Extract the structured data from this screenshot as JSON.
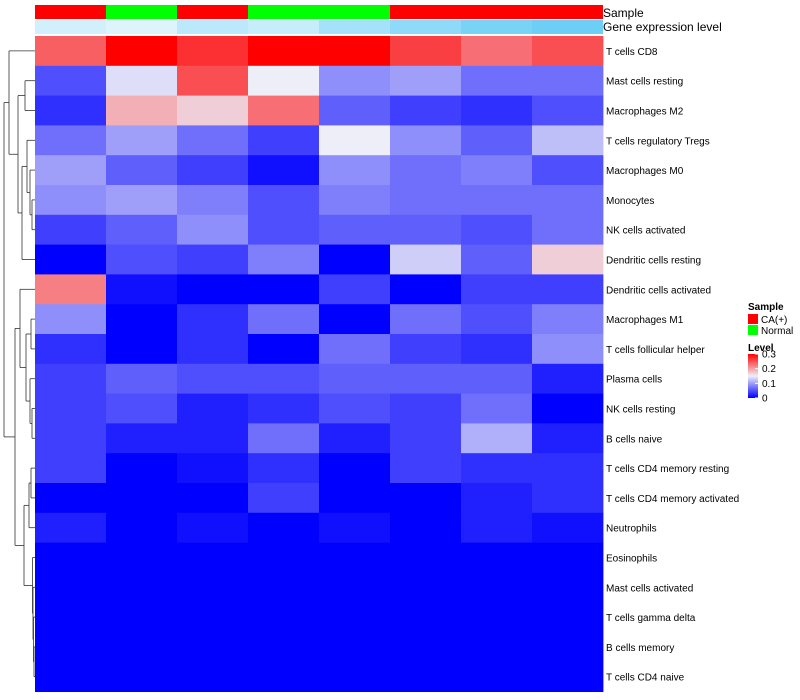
{
  "chart_data": {
    "type": "heatmap",
    "annotation_labels": {
      "sample": "Sample",
      "expression": "Gene expression level"
    },
    "sample_groups": [
      "CA(+)",
      "Normal",
      "CA(+)",
      "Normal",
      "Normal",
      "CA(+)",
      "CA(+)",
      "CA(+)"
    ],
    "expression_levels": [
      0.08,
      0.06,
      0.12,
      0.1,
      0.16,
      0.2,
      0.24,
      0.26
    ],
    "rows": [
      "T cells CD8",
      "Mast cells resting",
      "Macrophages M2",
      "T cells regulatory  Tregs",
      "Macrophages M0",
      "Monocytes",
      "NK cells activated",
      "Dendritic cells resting",
      "Dendritic cells activated",
      "Macrophages M1",
      "T cells follicular helper",
      "Plasma cells",
      "NK cells resting",
      "B cells naive",
      "T cells CD4 memory resting",
      "T cells CD4 memory activated",
      "Neutrophils",
      "Eosinophils",
      "Mast cells activated",
      "T cells gamma delta",
      "B cells memory",
      "T cells CD4 naive"
    ],
    "values": [
      [
        0.24,
        0.3,
        0.27,
        0.3,
        0.3,
        0.26,
        0.23,
        0.25
      ],
      [
        0.05,
        0.14,
        0.25,
        0.15,
        0.09,
        0.1,
        0.07,
        0.07
      ],
      [
        0.03,
        0.19,
        0.17,
        0.23,
        0.06,
        0.04,
        0.03,
        0.05
      ],
      [
        0.07,
        0.1,
        0.07,
        0.04,
        0.15,
        0.09,
        0.06,
        0.12
      ],
      [
        0.1,
        0.06,
        0.04,
        0.01,
        0.09,
        0.07,
        0.08,
        0.05
      ],
      [
        0.09,
        0.1,
        0.08,
        0.05,
        0.08,
        0.07,
        0.07,
        0.07
      ],
      [
        0.04,
        0.06,
        0.09,
        0.05,
        0.06,
        0.06,
        0.05,
        0.07
      ],
      [
        0.0,
        0.05,
        0.04,
        0.08,
        0.0,
        0.13,
        0.06,
        0.17
      ],
      [
        0.22,
        0.01,
        0.0,
        0.0,
        0.04,
        0.0,
        0.04,
        0.04
      ],
      [
        0.09,
        0.0,
        0.03,
        0.07,
        0.0,
        0.07,
        0.05,
        0.08
      ],
      [
        0.03,
        0.0,
        0.03,
        0.0,
        0.07,
        0.04,
        0.03,
        0.09
      ],
      [
        0.04,
        0.06,
        0.05,
        0.05,
        0.06,
        0.06,
        0.06,
        0.02
      ],
      [
        0.04,
        0.05,
        0.02,
        0.03,
        0.05,
        0.04,
        0.07,
        0.0
      ],
      [
        0.04,
        0.02,
        0.02,
        0.07,
        0.02,
        0.04,
        0.11,
        0.02
      ],
      [
        0.04,
        0.0,
        0.01,
        0.03,
        0.0,
        0.04,
        0.03,
        0.03
      ],
      [
        0.0,
        0.0,
        0.0,
        0.04,
        0.0,
        0.0,
        0.02,
        0.03
      ],
      [
        0.02,
        0.0,
        0.01,
        0.0,
        0.01,
        0.0,
        0.02,
        0.01
      ],
      [
        0.0,
        0.0,
        0.0,
        0.0,
        0.0,
        0.0,
        0.0,
        0.0
      ],
      [
        0.0,
        0.0,
        0.0,
        0.0,
        0.0,
        0.0,
        0.0,
        0.0
      ],
      [
        0.0,
        0.0,
        0.0,
        0.0,
        0.0,
        0.0,
        0.0,
        0.0
      ],
      [
        0.0,
        0.0,
        0.0,
        0.0,
        0.0,
        0.0,
        0.0,
        0.0
      ],
      [
        0.0,
        0.0,
        0.0,
        0.0,
        0.0,
        0.0,
        0.0,
        0.0
      ]
    ],
    "color_scale": {
      "min": 0,
      "max": 0.3,
      "low_color": "#0000FF",
      "mid_color": "#EEEEF8",
      "high_color": "#FF0000",
      "mid_value": 0.15
    },
    "group_colors": {
      "CA(+)": "#FF0000",
      "Normal": "#00FF00"
    },
    "expression_colors": {
      "low": "#FFFFFF",
      "high": "#56C8F4",
      "min": 0,
      "max": 0.3
    },
    "legend": {
      "sample_title": "Sample",
      "sample_entries": [
        "CA(+)",
        "Normal"
      ],
      "level_title": "Level",
      "level_ticks": [
        "0.3",
        "0.2",
        "0.1",
        "0"
      ],
      "level_tick_values": [
        0.3,
        0.2,
        0.1,
        0
      ]
    },
    "dendrogram": {
      "side": "left",
      "clustered": "rows"
    }
  }
}
